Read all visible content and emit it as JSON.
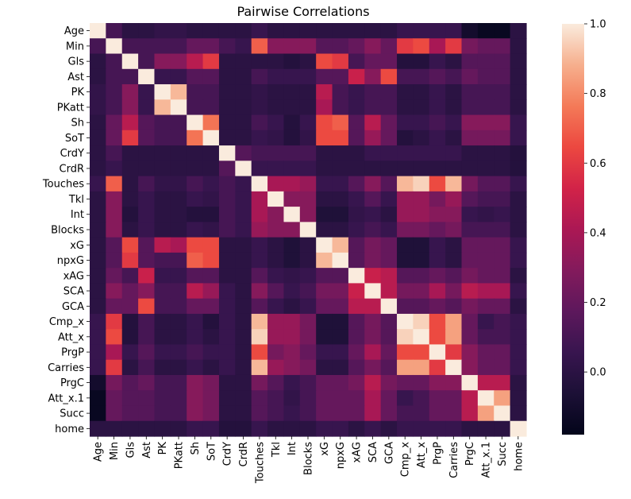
{
  "chart_data": {
    "type": "heatmap",
    "title": "Pairwise Correlations",
    "labels": [
      "Age",
      "Min",
      "Gls",
      "Ast",
      "PK",
      "PKatt",
      "Sh",
      "SoT",
      "CrdY",
      "CrdR",
      "Touches",
      "Tkl",
      "Int",
      "Blocks",
      "xG",
      "npxG",
      "xAG",
      "SCA",
      "GCA",
      "Cmp_x",
      "Att_x",
      "PrgP",
      "Carries",
      "PrgC",
      "Att_x.1",
      "Succ",
      "home"
    ],
    "matrix": [
      [
        1.0,
        0.1,
        0.0,
        0.0,
        0.03,
        0.03,
        0.0,
        0.0,
        0.0,
        0.0,
        0.05,
        0.0,
        0.0,
        0.0,
        0.0,
        0.0,
        0.0,
        0.0,
        0.0,
        0.05,
        0.05,
        0.05,
        0.05,
        -0.1,
        -0.15,
        -0.15,
        0.0
      ],
      [
        0.1,
        1.0,
        0.1,
        0.1,
        0.1,
        0.1,
        0.2,
        0.2,
        0.1,
        0.05,
        0.7,
        0.3,
        0.3,
        0.3,
        0.15,
        0.15,
        0.2,
        0.3,
        0.2,
        0.6,
        0.65,
        0.4,
        0.6,
        0.25,
        0.2,
        0.2,
        0.0
      ],
      [
        0.0,
        0.1,
        1.0,
        0.1,
        0.3,
        0.3,
        0.45,
        0.6,
        0.0,
        0.0,
        0.0,
        0.0,
        -0.03,
        0.0,
        0.65,
        0.6,
        0.1,
        0.2,
        0.2,
        -0.03,
        -0.03,
        0.05,
        0.0,
        0.15,
        0.15,
        0.15,
        0.0
      ],
      [
        0.0,
        0.1,
        0.1,
        1.0,
        0.05,
        0.05,
        0.15,
        0.15,
        0.0,
        0.0,
        0.1,
        0.05,
        0.05,
        0.05,
        0.15,
        0.15,
        0.5,
        0.3,
        0.65,
        0.1,
        0.1,
        0.15,
        0.1,
        0.2,
        0.15,
        0.15,
        0.0
      ],
      [
        0.03,
        0.1,
        0.3,
        0.05,
        1.0,
        0.9,
        0.1,
        0.1,
        0.0,
        0.0,
        0.03,
        0.0,
        0.0,
        0.0,
        0.45,
        0.1,
        0.05,
        0.1,
        0.1,
        0.0,
        0.0,
        0.05,
        0.0,
        0.1,
        0.1,
        0.1,
        0.0
      ],
      [
        0.03,
        0.1,
        0.3,
        0.05,
        0.9,
        1.0,
        0.1,
        0.1,
        0.0,
        0.0,
        0.03,
        0.0,
        0.0,
        0.0,
        0.4,
        0.1,
        0.05,
        0.1,
        0.1,
        0.0,
        0.0,
        0.05,
        0.0,
        0.1,
        0.1,
        0.1,
        0.0
      ],
      [
        0.0,
        0.2,
        0.45,
        0.15,
        0.1,
        0.1,
        1.0,
        0.75,
        0.0,
        0.0,
        0.1,
        0.05,
        -0.03,
        0.05,
        0.65,
        0.7,
        0.15,
        0.45,
        0.2,
        0.05,
        0.05,
        0.1,
        0.05,
        0.3,
        0.3,
        0.3,
        0.05
      ],
      [
        0.0,
        0.2,
        0.6,
        0.15,
        0.1,
        0.1,
        0.75,
        1.0,
        0.0,
        0.0,
        0.05,
        0.03,
        -0.03,
        0.03,
        0.65,
        0.65,
        0.15,
        0.35,
        0.2,
        -0.03,
        0.0,
        0.05,
        0.0,
        0.25,
        0.25,
        0.25,
        0.05
      ],
      [
        0.0,
        0.1,
        0.0,
        0.0,
        0.0,
        0.0,
        0.0,
        0.0,
        1.0,
        0.15,
        0.1,
        0.1,
        0.1,
        0.1,
        0.0,
        0.0,
        0.0,
        0.05,
        0.05,
        0.05,
        0.05,
        0.05,
        0.05,
        0.0,
        0.0,
        0.0,
        -0.03
      ],
      [
        0.0,
        0.05,
        0.0,
        0.0,
        0.0,
        0.0,
        0.0,
        0.0,
        0.15,
        1.0,
        0.05,
        0.05,
        0.05,
        0.05,
        0.0,
        0.0,
        0.0,
        0.0,
        0.0,
        0.0,
        0.0,
        0.0,
        0.0,
        0.0,
        0.0,
        0.0,
        -0.03
      ],
      [
        0.05,
        0.7,
        0.0,
        0.1,
        0.03,
        0.03,
        0.1,
        0.05,
        0.1,
        0.05,
        1.0,
        0.4,
        0.4,
        0.35,
        0.05,
        0.05,
        0.15,
        0.3,
        0.15,
        0.9,
        0.95,
        0.65,
        0.9,
        0.25,
        0.15,
        0.15,
        0.05
      ],
      [
        0.0,
        0.3,
        0.0,
        0.05,
        0.0,
        0.0,
        0.05,
        0.03,
        0.1,
        0.05,
        0.4,
        1.0,
        0.3,
        0.3,
        0.0,
        0.0,
        0.05,
        0.15,
        0.05,
        0.35,
        0.35,
        0.25,
        0.35,
        0.15,
        0.1,
        0.1,
        0.0
      ],
      [
        0.0,
        0.3,
        -0.03,
        0.05,
        0.0,
        0.0,
        -0.03,
        -0.03,
        0.1,
        0.05,
        0.4,
        0.3,
        1.0,
        0.3,
        -0.05,
        -0.05,
        0.03,
        0.05,
        0.0,
        0.35,
        0.35,
        0.3,
        0.3,
        0.05,
        0.03,
        0.05,
        0.0
      ],
      [
        0.0,
        0.3,
        0.0,
        0.05,
        0.0,
        0.0,
        0.05,
        0.03,
        0.1,
        0.05,
        0.35,
        0.3,
        0.3,
        1.0,
        0.0,
        0.0,
        0.05,
        0.1,
        0.05,
        0.25,
        0.25,
        0.2,
        0.25,
        0.1,
        0.1,
        0.1,
        0.0
      ],
      [
        0.0,
        0.15,
        0.65,
        0.15,
        0.45,
        0.4,
        0.65,
        0.65,
        0.0,
        0.0,
        0.05,
        0.0,
        -0.05,
        0.0,
        1.0,
        0.9,
        0.15,
        0.25,
        0.2,
        -0.05,
        -0.05,
        0.05,
        0.0,
        0.2,
        0.2,
        0.2,
        0.05
      ],
      [
        0.0,
        0.15,
        0.6,
        0.15,
        0.1,
        0.1,
        0.7,
        0.65,
        0.0,
        0.0,
        0.05,
        0.0,
        -0.05,
        0.0,
        0.9,
        1.0,
        0.15,
        0.25,
        0.2,
        -0.05,
        -0.05,
        0.05,
        0.0,
        0.2,
        0.2,
        0.2,
        0.05
      ],
      [
        0.0,
        0.2,
        0.1,
        0.5,
        0.05,
        0.05,
        0.15,
        0.15,
        0.0,
        0.0,
        0.15,
        0.05,
        0.03,
        0.05,
        0.15,
        0.15,
        1.0,
        0.5,
        0.45,
        0.15,
        0.15,
        0.2,
        0.15,
        0.25,
        0.2,
        0.2,
        0.0
      ],
      [
        0.0,
        0.3,
        0.2,
        0.3,
        0.1,
        0.1,
        0.45,
        0.35,
        0.05,
        0.0,
        0.3,
        0.15,
        0.05,
        0.1,
        0.25,
        0.25,
        0.5,
        1.0,
        0.45,
        0.25,
        0.25,
        0.4,
        0.25,
        0.45,
        0.4,
        0.4,
        0.05
      ],
      [
        0.0,
        0.2,
        0.2,
        0.65,
        0.1,
        0.1,
        0.2,
        0.2,
        0.05,
        0.0,
        0.15,
        0.05,
        0.0,
        0.05,
        0.2,
        0.2,
        0.45,
        0.45,
        1.0,
        0.15,
        0.15,
        0.2,
        0.15,
        0.25,
        0.2,
        0.2,
        0.0
      ],
      [
        0.05,
        0.6,
        -0.03,
        0.1,
        0.0,
        0.0,
        0.05,
        -0.03,
        0.05,
        0.0,
        0.9,
        0.35,
        0.35,
        0.25,
        -0.05,
        -0.05,
        0.15,
        0.25,
        0.15,
        1.0,
        0.95,
        0.65,
        0.85,
        0.2,
        0.05,
        0.1,
        0.05
      ],
      [
        0.05,
        0.65,
        -0.03,
        0.1,
        0.0,
        0.0,
        0.05,
        0.0,
        0.05,
        0.0,
        0.95,
        0.35,
        0.35,
        0.25,
        -0.05,
        -0.05,
        0.15,
        0.25,
        0.15,
        0.95,
        1.0,
        0.65,
        0.85,
        0.2,
        0.1,
        0.1,
        0.05
      ],
      [
        0.05,
        0.4,
        0.05,
        0.15,
        0.05,
        0.05,
        0.1,
        0.05,
        0.05,
        0.0,
        0.65,
        0.25,
        0.3,
        0.2,
        0.05,
        0.05,
        0.2,
        0.4,
        0.2,
        0.65,
        0.65,
        1.0,
        0.6,
        0.3,
        0.2,
        0.2,
        0.05
      ],
      [
        0.05,
        0.6,
        0.0,
        0.1,
        0.0,
        0.0,
        0.05,
        0.0,
        0.05,
        0.0,
        0.9,
        0.35,
        0.3,
        0.25,
        0.0,
        0.0,
        0.15,
        0.25,
        0.15,
        0.85,
        0.85,
        0.6,
        1.0,
        0.3,
        0.2,
        0.2,
        0.05
      ],
      [
        -0.1,
        0.25,
        0.15,
        0.2,
        0.1,
        0.1,
        0.3,
        0.25,
        0.0,
        0.0,
        0.25,
        0.15,
        0.05,
        0.1,
        0.2,
        0.2,
        0.25,
        0.45,
        0.25,
        0.2,
        0.2,
        0.3,
        0.3,
        1.0,
        0.45,
        0.45,
        0.0
      ],
      [
        -0.15,
        0.2,
        0.15,
        0.15,
        0.1,
        0.1,
        0.3,
        0.25,
        0.0,
        0.0,
        0.15,
        0.1,
        0.03,
        0.1,
        0.2,
        0.2,
        0.2,
        0.4,
        0.2,
        0.05,
        0.1,
        0.2,
        0.2,
        0.45,
        1.0,
        0.85,
        0.0
      ],
      [
        -0.15,
        0.2,
        0.15,
        0.15,
        0.1,
        0.1,
        0.3,
        0.25,
        0.0,
        0.0,
        0.15,
        0.1,
        0.05,
        0.1,
        0.2,
        0.2,
        0.2,
        0.4,
        0.2,
        0.1,
        0.1,
        0.2,
        0.2,
        0.45,
        0.85,
        1.0,
        0.0
      ],
      [
        0.0,
        0.0,
        0.0,
        0.0,
        0.0,
        0.0,
        0.05,
        0.05,
        -0.03,
        -0.03,
        0.05,
        0.0,
        0.0,
        0.0,
        0.05,
        0.05,
        0.0,
        0.05,
        0.0,
        0.05,
        0.05,
        0.05,
        0.05,
        0.0,
        0.0,
        0.0,
        1.0
      ]
    ],
    "vmin": -0.18,
    "vmax": 1.0,
    "colorbar_ticks": [
      "0.0",
      "0.2",
      "0.4",
      "0.6",
      "0.8",
      "1.0"
    ],
    "colormap": "rocket",
    "grid": false
  }
}
